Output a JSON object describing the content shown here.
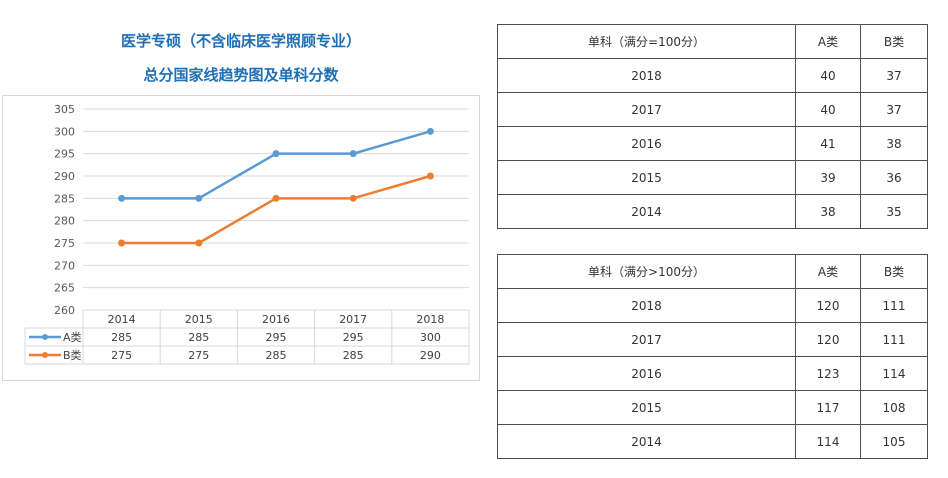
{
  "titles": {
    "line1": "医学专硕（不含临床医学照顾专业）",
    "line2": "总分国家线趋势图及单科分数"
  },
  "chart_data": {
    "type": "line",
    "categories": [
      "2014",
      "2015",
      "2016",
      "2017",
      "2018"
    ],
    "series": [
      {
        "name": "A类",
        "values": [
          285,
          285,
          295,
          295,
          300
        ],
        "color": "#5b9bd5"
      },
      {
        "name": "B类",
        "values": [
          275,
          275,
          285,
          285,
          290
        ],
        "color": "#ed7d31"
      }
    ],
    "ylim": [
      260,
      305
    ],
    "yticks": [
      260,
      265,
      270,
      275,
      280,
      285,
      290,
      295,
      300,
      305
    ],
    "grid": true,
    "legend": "data-table-below",
    "title": "",
    "xlabel": "",
    "ylabel": ""
  },
  "table1": {
    "header": [
      "单科（满分=100分）",
      "A类",
      "B类"
    ],
    "rows": [
      [
        "2018",
        "40",
        "37"
      ],
      [
        "2017",
        "40",
        "37"
      ],
      [
        "2016",
        "41",
        "38"
      ],
      [
        "2015",
        "39",
        "36"
      ],
      [
        "2014",
        "38",
        "35"
      ]
    ]
  },
  "table2": {
    "header": [
      "单科（满分>100分）",
      "A类",
      "B类"
    ],
    "rows": [
      [
        "2018",
        "120",
        "111"
      ],
      [
        "2017",
        "120",
        "111"
      ],
      [
        "2016",
        "123",
        "114"
      ],
      [
        "2015",
        "117",
        "108"
      ],
      [
        "2014",
        "114",
        "105"
      ]
    ]
  }
}
